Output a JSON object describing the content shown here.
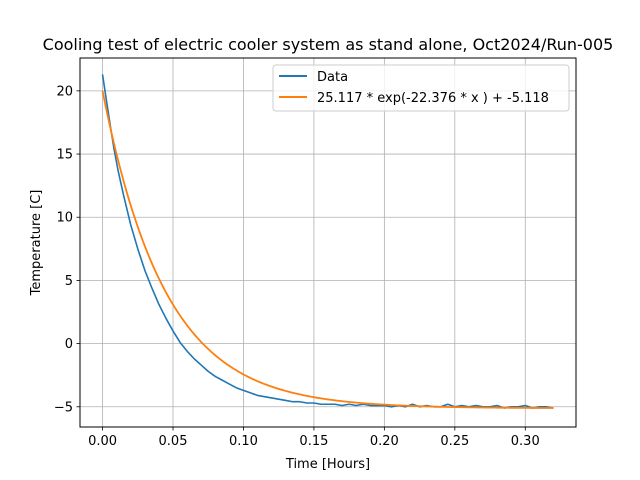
{
  "chart_data": {
    "type": "line",
    "title": "Cooling test of electric cooler system as stand alone, Oct2024/Run-005",
    "xlabel": "Time [Hours]",
    "ylabel": "Temperature [C]",
    "xlim": [
      -0.016,
      0.336
    ],
    "ylim": [
      -6.6,
      22.6
    ],
    "xticks": [
      0.0,
      0.05,
      0.1,
      0.15,
      0.2,
      0.25,
      0.3
    ],
    "xtick_labels": [
      "0.00",
      "0.05",
      "0.10",
      "0.15",
      "0.20",
      "0.25",
      "0.30"
    ],
    "yticks": [
      -5,
      0,
      5,
      10,
      15,
      20
    ],
    "ytick_labels": [
      "−5",
      "0",
      "5",
      "10",
      "15",
      "20"
    ],
    "grid": true,
    "legend_position": "top-right",
    "series": [
      {
        "name": "Data",
        "color": "#1f77b4",
        "x": [
          0.0,
          0.002,
          0.005,
          0.008,
          0.011,
          0.015,
          0.02,
          0.025,
          0.03,
          0.035,
          0.04,
          0.045,
          0.05,
          0.055,
          0.06,
          0.065,
          0.07,
          0.075,
          0.08,
          0.085,
          0.09,
          0.095,
          0.1,
          0.105,
          0.11,
          0.115,
          0.12,
          0.125,
          0.13,
          0.135,
          0.14,
          0.145,
          0.15,
          0.155,
          0.16,
          0.165,
          0.17,
          0.175,
          0.18,
          0.185,
          0.19,
          0.195,
          0.2,
          0.205,
          0.21,
          0.215,
          0.22,
          0.225,
          0.23,
          0.235,
          0.24,
          0.245,
          0.25,
          0.255,
          0.26,
          0.265,
          0.27,
          0.275,
          0.28,
          0.285,
          0.29,
          0.295,
          0.3,
          0.305,
          0.31,
          0.315,
          0.32
        ],
        "y": [
          21.3,
          19.8,
          17.6,
          15.5,
          13.7,
          11.7,
          9.4,
          7.5,
          5.8,
          4.4,
          3.1,
          2.0,
          1.0,
          0.1,
          -0.6,
          -1.2,
          -1.7,
          -2.2,
          -2.6,
          -2.9,
          -3.2,
          -3.5,
          -3.7,
          -3.9,
          -4.1,
          -4.2,
          -4.3,
          -4.4,
          -4.5,
          -4.6,
          -4.6,
          -4.7,
          -4.7,
          -4.8,
          -4.8,
          -4.8,
          -4.9,
          -4.8,
          -4.9,
          -4.8,
          -4.9,
          -4.9,
          -4.9,
          -5.0,
          -4.9,
          -5.0,
          -4.8,
          -5.0,
          -4.9,
          -5.0,
          -5.0,
          -4.8,
          -5.0,
          -4.9,
          -5.0,
          -4.9,
          -5.0,
          -5.0,
          -4.9,
          -5.1,
          -5.0,
          -5.0,
          -4.9,
          -5.1,
          -5.0,
          -5.0,
          -5.1
        ]
      },
      {
        "name": "25.117 * exp(-22.376 * x ) + -5.118",
        "color": "#ff7f0e",
        "function": {
          "a": 25.117,
          "b": -22.376,
          "c": -5.118
        },
        "x_range": [
          0.0,
          0.32
        ]
      }
    ]
  }
}
